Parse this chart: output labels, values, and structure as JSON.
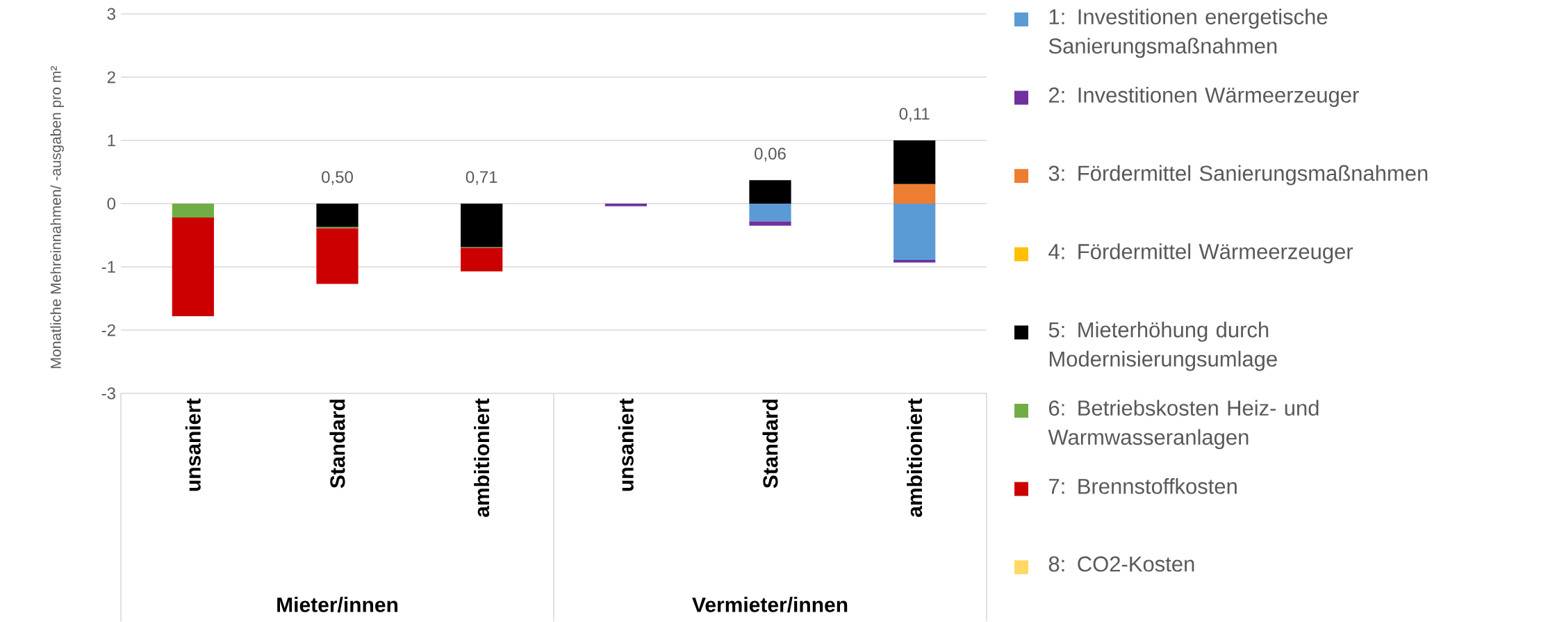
{
  "chart_data": {
    "type": "bar",
    "stacked": true,
    "ylabel": "Monatliche Mehreinnahmen/ -ausgaben pro m²",
    "categories": [
      "unsaniert",
      "Standard",
      "ambitioniert",
      "unsaniert",
      "Standard",
      "ambitioniert"
    ],
    "series": [
      {
        "name": "1: Investitionen energetische Sanierungsmaßnahmen",
        "color": "#5b9bd5",
        "values": [
          0,
          0,
          0,
          0,
          -0.28,
          -0.89
        ]
      },
      {
        "name": "2: Investitionen Wärmeerzeuger",
        "color": "#7030a0",
        "values": [
          0,
          0,
          0,
          -0.04,
          -0.07,
          -0.04
        ]
      },
      {
        "name": "3: Fördermittel Sanierungsmaßnahmen",
        "color": "#ed7d31",
        "values": [
          0,
          0,
          0,
          0,
          0,
          0.31
        ]
      },
      {
        "name": "4: Fördermittel Wärmeerzeuger",
        "color": "#ffc000",
        "values": [
          0,
          0,
          0,
          0,
          0,
          0
        ]
      },
      {
        "name": "5: Mieterhöhung durch Modernisierungsumlage",
        "color": "#000000",
        "values": [
          0,
          -0.37,
          -0.69,
          0,
          0.37,
          0.69
        ]
      },
      {
        "name": "6: Betriebskosten Heiz- und Warmwasseranlagen",
        "color": "#70ad47",
        "values": [
          -0.22,
          -0.02,
          -0.01,
          0,
          0,
          0
        ]
      },
      {
        "name": "7: Brennstoffkosten",
        "color": "#cc0000",
        "values": [
          -1.56,
          -0.88,
          -0.37,
          0,
          0,
          0
        ]
      },
      {
        "name": "8: CO2-Kosten",
        "color": "#ffd966",
        "values": [
          0,
          0,
          0,
          0,
          0,
          0
        ]
      }
    ],
    "annotations": [
      "Mieter/innen",
      "Vermieter/innen",
      "0,50",
      "0,71",
      "0,06",
      "0,11"
    ],
    "ylim": [
      -3,
      3
    ],
    "yticks": [
      -3,
      -2,
      -1,
      0,
      1,
      2,
      3
    ],
    "grid": "y",
    "legend": "right"
  }
}
